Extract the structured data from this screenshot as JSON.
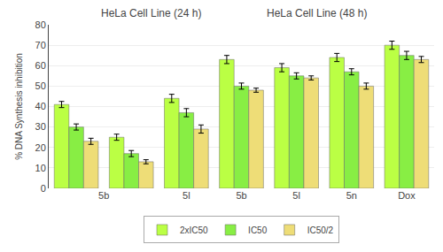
{
  "chart_data": {
    "type": "bar",
    "annotations": [
      "HeLa Cell Line (24 h)",
      "HeLa Cell Line (48 h)"
    ],
    "y_label": "% DNA Synthesis inhibition",
    "categories": [
      "5b",
      null,
      "5l",
      "5b",
      "5l",
      "5n",
      "Dox"
    ],
    "series": [
      {
        "name": "2xIC50",
        "color": "#bbff44",
        "values": [
          41,
          25,
          44,
          63,
          59,
          64,
          70
        ],
        "errors": [
          1.5,
          1.5,
          2.0,
          2.0,
          2.0,
          2.0,
          2.0
        ]
      },
      {
        "name": "IC50",
        "color": "#88ee44",
        "values": [
          30,
          17,
          37,
          50,
          55,
          57,
          65
        ],
        "errors": [
          1.5,
          1.5,
          2.0,
          1.5,
          1.5,
          1.5,
          2.0
        ]
      },
      {
        "name": "IC50/2",
        "color": "#eedd77",
        "values": [
          23,
          13,
          29,
          48,
          54,
          50,
          63
        ],
        "errors": [
          1.5,
          1.0,
          2.0,
          1.0,
          1.0,
          1.5,
          1.5
        ]
      }
    ],
    "ylim": [
      0,
      80
    ],
    "yticks": [
      0,
      10,
      20,
      30,
      40,
      50,
      60,
      70,
      80
    ],
    "grid": true,
    "legend": "bottom"
  }
}
